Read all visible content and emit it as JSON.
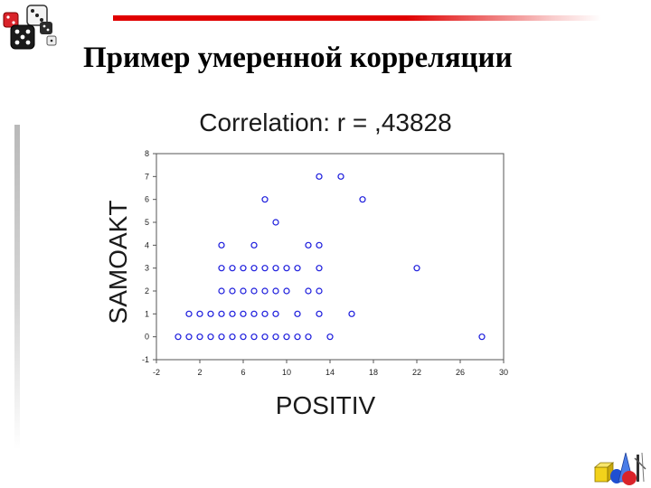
{
  "slide": {
    "title": "Пример умеренной корреляции"
  },
  "icons": {
    "logo": "dice-icon",
    "corner_art": "geometric-shapes-icon"
  },
  "colors": {
    "accent_rule": "#e00000",
    "point_stroke": "#1a1adc"
  },
  "chart_data": {
    "type": "scatter",
    "title": "Correlation: r = ,43828",
    "xlabel": "POSITIV",
    "ylabel": "SAMOAKT",
    "xlim": [
      -2,
      30
    ],
    "ylim": [
      -1,
      8
    ],
    "xticks": [
      -2,
      2,
      6,
      10,
      14,
      18,
      22,
      26,
      30
    ],
    "yticks": [
      -1,
      0,
      1,
      2,
      3,
      4,
      5,
      6,
      7,
      8
    ],
    "xtick_labels": [
      "-2",
      "2",
      "6",
      "10",
      "14",
      "18",
      "22",
      "26",
      "30"
    ],
    "ytick_labels": [
      "-1",
      "0",
      "1",
      "2",
      "3",
      "4",
      "5",
      "6",
      "7",
      "8"
    ],
    "grid": false,
    "legend": "none",
    "points": [
      {
        "x": 0,
        "y": 0
      },
      {
        "x": 1,
        "y": 0
      },
      {
        "x": 2,
        "y": 0
      },
      {
        "x": 3,
        "y": 0
      },
      {
        "x": 4,
        "y": 0
      },
      {
        "x": 5,
        "y": 0
      },
      {
        "x": 6,
        "y": 0
      },
      {
        "x": 7,
        "y": 0
      },
      {
        "x": 8,
        "y": 0
      },
      {
        "x": 9,
        "y": 0
      },
      {
        "x": 10,
        "y": 0
      },
      {
        "x": 11,
        "y": 0
      },
      {
        "x": 12,
        "y": 0
      },
      {
        "x": 14,
        "y": 0
      },
      {
        "x": 28,
        "y": 0
      },
      {
        "x": 1,
        "y": 1
      },
      {
        "x": 2,
        "y": 1
      },
      {
        "x": 3,
        "y": 1
      },
      {
        "x": 4,
        "y": 1
      },
      {
        "x": 5,
        "y": 1
      },
      {
        "x": 6,
        "y": 1
      },
      {
        "x": 7,
        "y": 1
      },
      {
        "x": 8,
        "y": 1
      },
      {
        "x": 9,
        "y": 1
      },
      {
        "x": 11,
        "y": 1
      },
      {
        "x": 13,
        "y": 1
      },
      {
        "x": 16,
        "y": 1
      },
      {
        "x": 4,
        "y": 2
      },
      {
        "x": 5,
        "y": 2
      },
      {
        "x": 6,
        "y": 2
      },
      {
        "x": 7,
        "y": 2
      },
      {
        "x": 8,
        "y": 2
      },
      {
        "x": 9,
        "y": 2
      },
      {
        "x": 10,
        "y": 2
      },
      {
        "x": 12,
        "y": 2
      },
      {
        "x": 13,
        "y": 2
      },
      {
        "x": 4,
        "y": 3
      },
      {
        "x": 5,
        "y": 3
      },
      {
        "x": 6,
        "y": 3
      },
      {
        "x": 7,
        "y": 3
      },
      {
        "x": 8,
        "y": 3
      },
      {
        "x": 9,
        "y": 3
      },
      {
        "x": 10,
        "y": 3
      },
      {
        "x": 11,
        "y": 3
      },
      {
        "x": 13,
        "y": 3
      },
      {
        "x": 22,
        "y": 3
      },
      {
        "x": 4,
        "y": 4
      },
      {
        "x": 7,
        "y": 4
      },
      {
        "x": 12,
        "y": 4
      },
      {
        "x": 13,
        "y": 4
      },
      {
        "x": 9,
        "y": 5
      },
      {
        "x": 8,
        "y": 6
      },
      {
        "x": 17,
        "y": 6
      },
      {
        "x": 13,
        "y": 7
      },
      {
        "x": 15,
        "y": 7
      }
    ]
  }
}
